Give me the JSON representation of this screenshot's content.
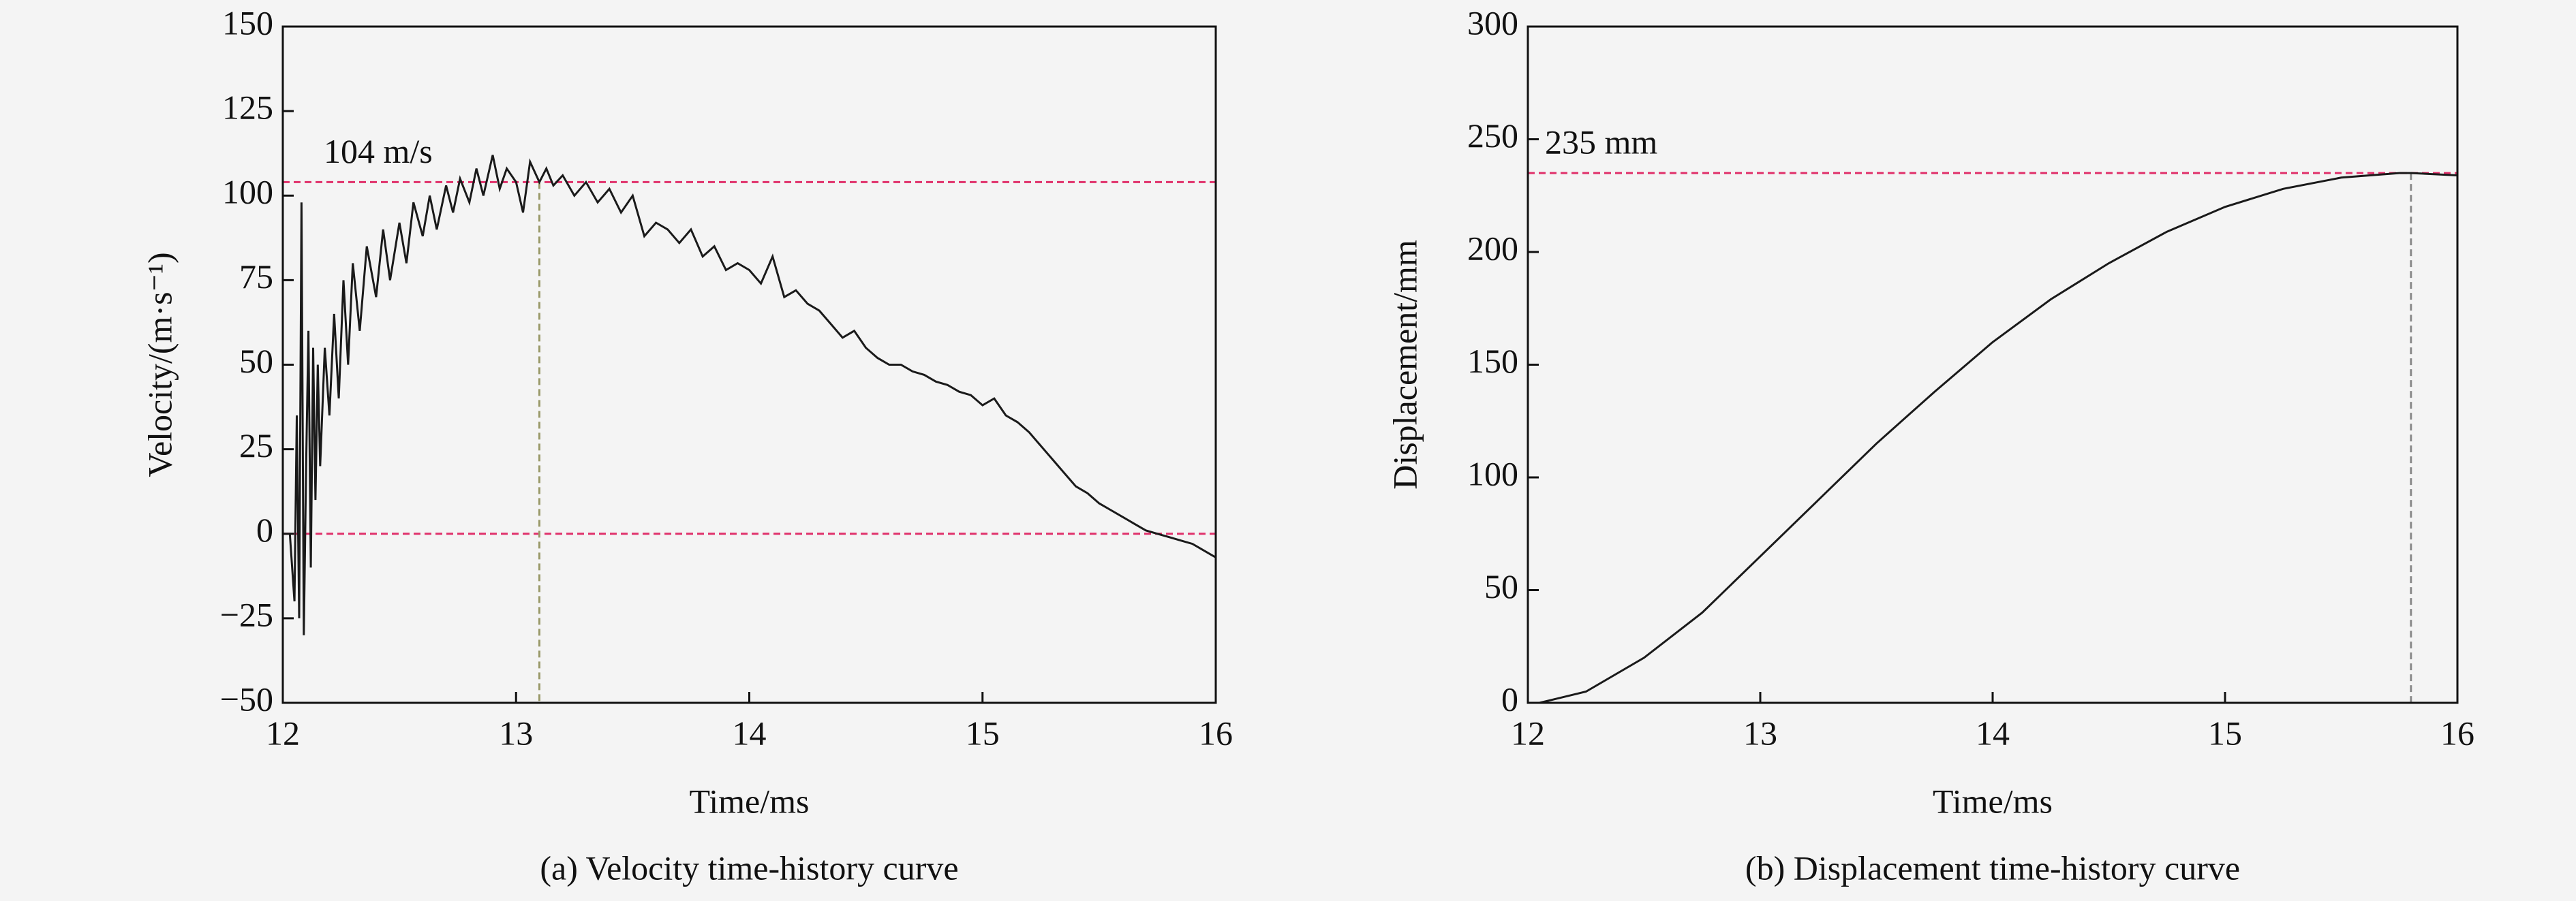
{
  "chart_data": [
    {
      "type": "line",
      "caption": "(a) Velocity time-history curve",
      "x_label": "Time/ms",
      "y_label": "Velocity/(m·s⁻¹)",
      "x": [
        12.0,
        12.03,
        12.05,
        12.06,
        12.07,
        12.08,
        12.09,
        12.1,
        12.11,
        12.12,
        12.13,
        12.14,
        12.15,
        12.16,
        12.18,
        12.2,
        12.22,
        12.24,
        12.26,
        12.28,
        12.3,
        12.33,
        12.36,
        12.4,
        12.43,
        12.46,
        12.5,
        12.53,
        12.56,
        12.6,
        12.63,
        12.66,
        12.7,
        12.73,
        12.76,
        12.8,
        12.83,
        12.86,
        12.9,
        12.93,
        12.96,
        13.0,
        13.03,
        13.06,
        13.1,
        13.13,
        13.16,
        13.2,
        13.25,
        13.3,
        13.35,
        13.4,
        13.45,
        13.5,
        13.55,
        13.6,
        13.65,
        13.7,
        13.75,
        13.8,
        13.85,
        13.9,
        13.95,
        14.0,
        14.05,
        14.1,
        14.15,
        14.2,
        14.25,
        14.3,
        14.35,
        14.4,
        14.45,
        14.5,
        14.55,
        14.6,
        14.65,
        14.7,
        14.75,
        14.8,
        14.85,
        14.9,
        14.95,
        15.0,
        15.05,
        15.1,
        15.15,
        15.2,
        15.25,
        15.3,
        15.35,
        15.4,
        15.45,
        15.5,
        15.55,
        15.6,
        15.65,
        15.7,
        15.75,
        15.8,
        15.85,
        15.9,
        15.95,
        16.0
      ],
      "values": [
        0,
        0,
        -20,
        35,
        -25,
        98,
        -30,
        20,
        60,
        -10,
        55,
        10,
        50,
        20,
        55,
        35,
        65,
        40,
        75,
        50,
        80,
        60,
        85,
        70,
        90,
        75,
        92,
        80,
        98,
        88,
        100,
        90,
        103,
        95,
        105,
        98,
        108,
        100,
        112,
        102,
        108,
        104,
        95,
        110,
        104,
        108,
        103,
        106,
        100,
        104,
        98,
        102,
        95,
        100,
        88,
        92,
        90,
        86,
        90,
        82,
        85,
        78,
        80,
        78,
        74,
        82,
        70,
        72,
        68,
        66,
        62,
        58,
        60,
        55,
        52,
        50,
        50,
        48,
        47,
        45,
        44,
        42,
        41,
        38,
        40,
        35,
        33,
        30,
        26,
        22,
        18,
        14,
        12,
        9,
        7,
        5,
        3,
        1,
        0,
        -1,
        -2,
        -3,
        -5,
        -7
      ],
      "color": "#1a1a1a",
      "xlim": [
        12,
        16
      ],
      "xticks": [
        12,
        13,
        14,
        15,
        16
      ],
      "ylim": [
        -50,
        150
      ],
      "yticks": [
        {
          "value": -50,
          "label": "−50"
        },
        {
          "value": -25,
          "label": "−25"
        },
        0,
        25,
        50,
        75,
        100,
        125,
        150
      ],
      "hlines": [
        104,
        0
      ],
      "hline_color": "#e0306a",
      "vlines": [
        13.1
      ],
      "vline_color": "#9a9a6a",
      "annotation": "104 m/s"
    },
    {
      "type": "line",
      "caption": "(b) Displacement time-history curve",
      "x_label": "Time/ms",
      "y_label": "Displacement/mm",
      "x": [
        12.05,
        12.25,
        12.5,
        12.75,
        13,
        13.25,
        13.5,
        13.75,
        14,
        14.25,
        14.5,
        14.75,
        15,
        15.25,
        15.5,
        15.75,
        15.8,
        16
      ],
      "values": [
        0,
        5,
        20,
        40,
        65,
        90,
        115,
        138,
        160,
        179,
        195,
        209,
        220,
        228,
        233,
        235,
        235,
        234
      ],
      "color": "#1a1a1a",
      "xlim": [
        12,
        16
      ],
      "xticks": [
        12,
        13,
        14,
        15,
        16
      ],
      "ylim": [
        0,
        300
      ],
      "yticks": [
        0,
        50,
        100,
        150,
        200,
        250,
        300
      ],
      "hlines": [
        235
      ],
      "hline_color": "#e0306a",
      "vlines": [
        15.8
      ],
      "vline_color": "#8a8a8a",
      "annotation": "235 mm"
    }
  ]
}
